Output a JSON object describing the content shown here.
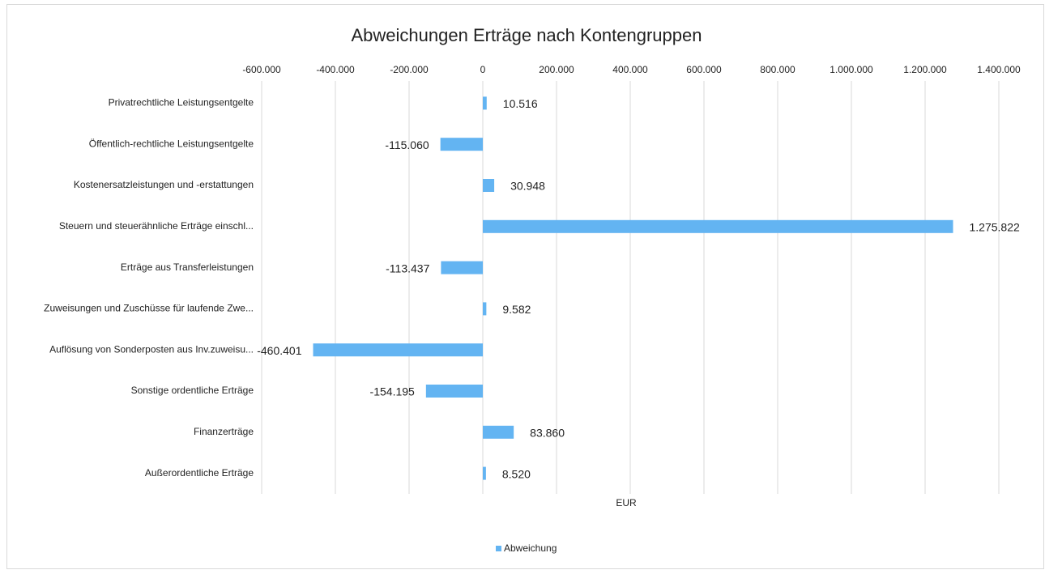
{
  "chart_data": {
    "type": "hbar",
    "title": "Abweichungen Erträge nach Kontengruppen",
    "categories": [
      "Privatrechtliche Leistungsentgelte",
      "Öffentlich-rechtliche Leistungsentgelte",
      "Kostenersatzleistungen und -erstattungen",
      "Steuern und steuerähnliche Erträge einschl...",
      "Erträge aus Transferleistungen",
      "Zuweisungen und Zuschüsse für laufende Zwe...",
      "Auflösung von Sonderposten aus Inv.zuweisu...",
      "Sonstige ordentliche Erträge",
      "Finanzerträge",
      "Außerordentliche Erträge"
    ],
    "series": [
      {
        "name": "Abweichung",
        "color": "#63b4f2",
        "values": [
          10516,
          -115060,
          30948,
          1275822,
          -113437,
          9582,
          -460401,
          -154195,
          83860,
          8520
        ],
        "value_labels": [
          "10.516",
          "-115.060",
          "30.948",
          "1.275.822",
          "-113.437",
          "9.582",
          "-460.401",
          "-154.195",
          "83.860",
          "8.520"
        ]
      }
    ],
    "xlabel": "EUR",
    "xlim": [
      -600000,
      1400000
    ],
    "xticks": [
      {
        "value": -600000,
        "label": "-600.000"
      },
      {
        "value": -400000,
        "label": "-400.000"
      },
      {
        "value": -200000,
        "label": "-200.000"
      },
      0,
      {
        "value": 200000,
        "label": "200.000"
      },
      {
        "value": 400000,
        "label": "400.000"
      },
      {
        "value": 600000,
        "label": "600.000"
      },
      {
        "value": 800000,
        "label": "800.000"
      },
      {
        "value": 1000000,
        "label": "1.000.000"
      },
      {
        "value": 1200000,
        "label": "1.200.000"
      },
      {
        "value": 1400000,
        "label": "1.400.000"
      }
    ],
    "grid": true,
    "legend": "bottom"
  }
}
